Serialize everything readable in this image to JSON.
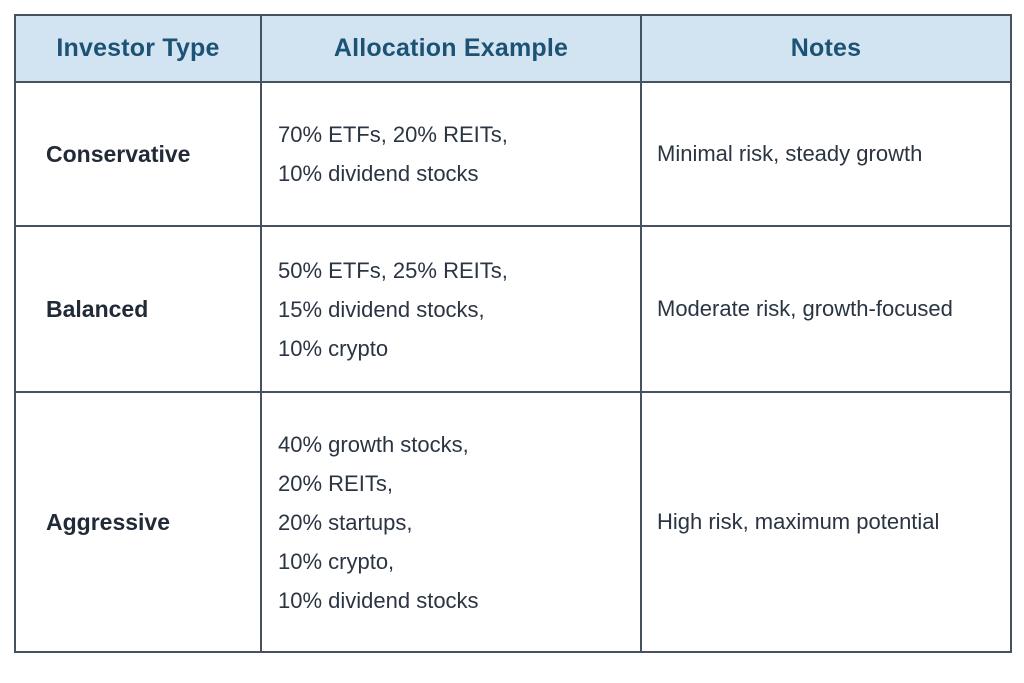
{
  "colors": {
    "page_bg": "#ffffff",
    "header_bg": "#d2e4f2",
    "header_text": "#1c5274",
    "border": "#46535f",
    "investor_type_text": "#212a36",
    "body_text": "#2b3442"
  },
  "table": {
    "columns": [
      {
        "label": "Investor Type"
      },
      {
        "label": "Allocation Example"
      },
      {
        "label": "Notes"
      }
    ],
    "rows": [
      {
        "investor_type": "Conservative",
        "allocation": [
          "70% ETFs, 20% REITs,",
          "10% dividend stocks"
        ],
        "notes": "Minimal risk, steady growth"
      },
      {
        "investor_type": "Balanced",
        "allocation": [
          "50% ETFs, 25% REITs,",
          "15% dividend stocks,",
          "10% crypto"
        ],
        "notes": "Moderate risk, growth-focused"
      },
      {
        "investor_type": "Aggressive",
        "allocation": [
          "40% growth stocks,",
          "20% REITs,",
          "20% startups,",
          "10% crypto,",
          "10% dividend stocks"
        ],
        "notes": "High risk, maximum potential"
      }
    ]
  },
  "chart_data": {
    "type": "table",
    "title": "",
    "columns": [
      "Investor Type",
      "Allocation Example",
      "Notes"
    ],
    "rows": [
      [
        "Conservative",
        "70% ETFs, 20% REITs, 10% dividend stocks",
        "Minimal risk, steady growth"
      ],
      [
        "Balanced",
        "50% ETFs, 25% REITs, 15% dividend stocks, 10% crypto",
        "Moderate risk, growth-focused"
      ],
      [
        "Aggressive",
        "40% growth stocks, 20% REITs, 20% startups, 10% crypto, 10% dividend stocks",
        "High risk, maximum potential"
      ]
    ],
    "allocations": [
      {
        "investor_type": "Conservative",
        "ETFs": 70,
        "REITs": 20,
        "dividend stocks": 10
      },
      {
        "investor_type": "Balanced",
        "ETFs": 50,
        "REITs": 25,
        "dividend stocks": 15,
        "crypto": 10
      },
      {
        "investor_type": "Aggressive",
        "growth stocks": 40,
        "REITs": 20,
        "startups": 20,
        "crypto": 10,
        "dividend stocks": 10
      }
    ]
  }
}
